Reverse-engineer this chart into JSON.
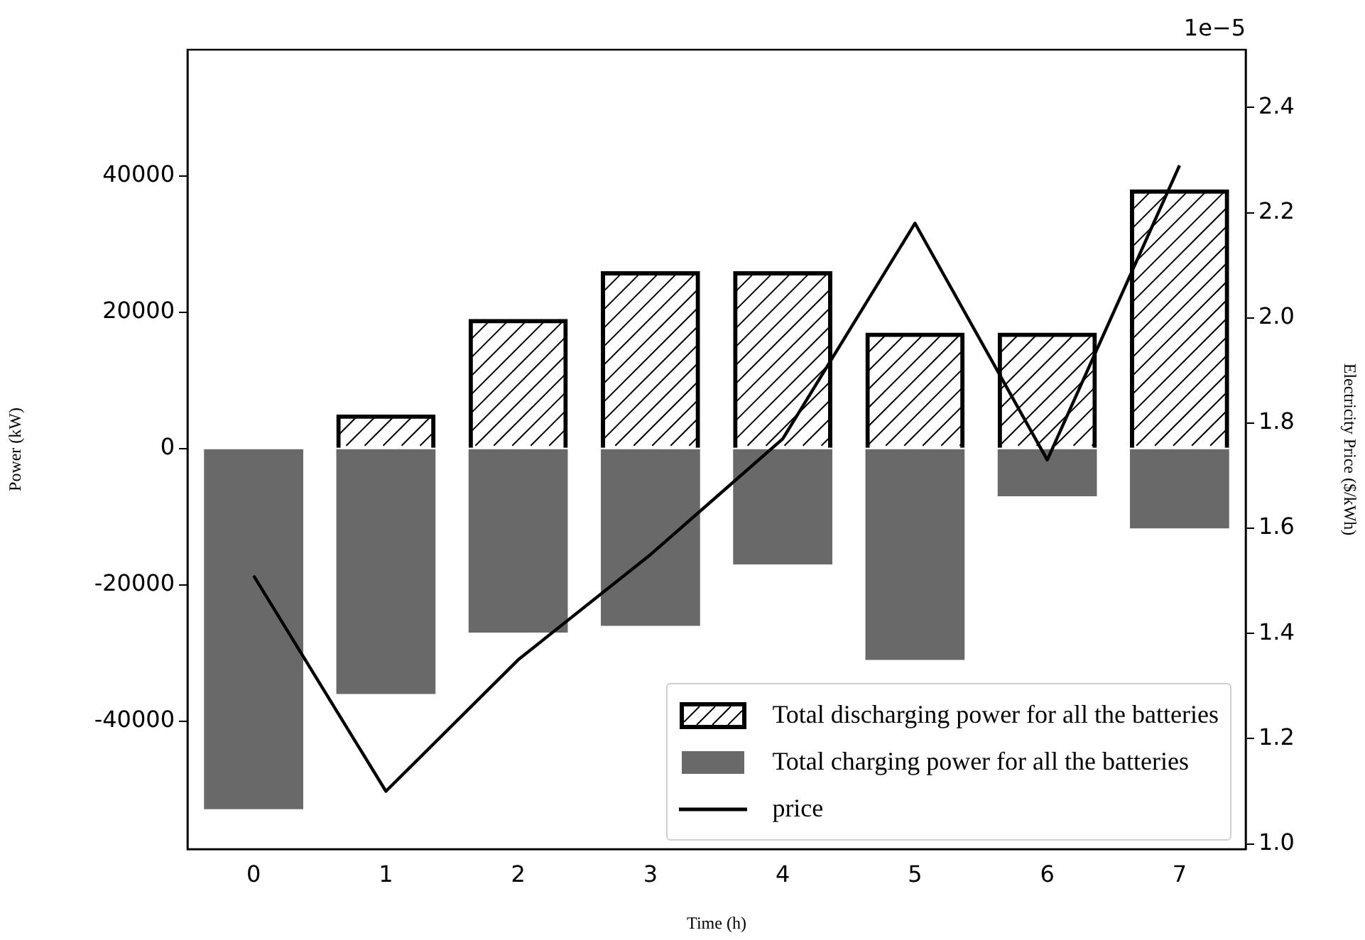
{
  "chart_data": {
    "type": "bar",
    "xlabel": "Time (h)",
    "ylabel": "Power (kW)",
    "y2label": "Electricity Price ($/kWh)",
    "categories": [
      "0",
      "1",
      "2",
      "3",
      "4",
      "5",
      "6",
      "7"
    ],
    "series": [
      {
        "name": "Total discharging power for all the batteries",
        "color": "#000000",
        "values": [
          0,
          5000,
          19000,
          26000,
          26000,
          17000,
          17000,
          38000
        ]
      },
      {
        "name": "Total charging power for all the batteries",
        "color": "#696969",
        "values": [
          -52900,
          -36000,
          -27000,
          -26000,
          -17000,
          -31000,
          -7000,
          -11700
        ]
      },
      {
        "name": "price",
        "type": "line",
        "axis": "y2",
        "color": "#000000",
        "values": [
          1.51,
          1.1,
          1.35,
          1.55,
          1.77,
          2.18,
          1.73,
          2.29
        ]
      }
    ],
    "ylim": [
      -58750,
      58500
    ],
    "yticks": [
      -40000,
      -20000,
      0,
      20000,
      40000
    ],
    "y2lim": [
      0.99,
      2.51
    ],
    "y2ticks": [
      {
        "value": 1,
        "label": "1.0"
      },
      {
        "value": 1.2,
        "label": "1.2"
      },
      {
        "value": 1.4,
        "label": "1.4"
      },
      {
        "value": 1.6,
        "label": "1.6"
      },
      {
        "value": 1.8,
        "label": "1.8"
      },
      {
        "value": 2,
        "label": "2.0"
      },
      {
        "value": 2.2,
        "label": "2.2"
      },
      {
        "value": 2.4,
        "label": "2.4"
      }
    ],
    "annotations": [
      "1e−5"
    ],
    "stacked": true,
    "legend": "bottom right",
    "grid": false,
    "marker": "none",
    "line_style": "solid"
  }
}
